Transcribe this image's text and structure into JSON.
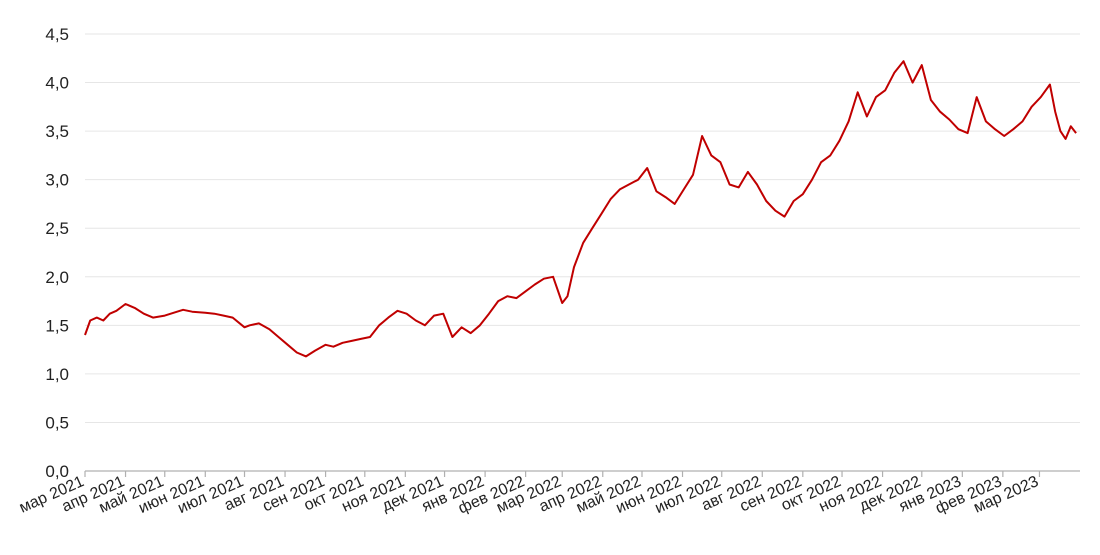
{
  "chart_data": {
    "type": "line",
    "title": "",
    "xlabel": "",
    "ylabel": "",
    "ylim": [
      0,
      4.5
    ],
    "yticks": [
      "0,0",
      "0,5",
      "1,0",
      "1,5",
      "2,0",
      "2,5",
      "3,0",
      "3,5",
      "4,0",
      "4,5"
    ],
    "xticks": [
      "мар 2021",
      "апр 2021",
      "май 2021",
      "июн 2021",
      "июл 2021",
      "авг 2021",
      "сен 2021",
      "окт 2021",
      "ноя 2021",
      "дек 2021",
      "янв 2022",
      "фев 2022",
      "мар 2022",
      "апр 2022",
      "май 2022",
      "июн 2022",
      "июл 2022",
      "авг 2022",
      "сен 2022",
      "окт 2022",
      "ноя 2022",
      "дек 2022",
      "янв 2023",
      "фев 2023",
      "мар 2023"
    ],
    "grid": true,
    "line_color": "#c00000",
    "series": [
      {
        "x": [
          "2021-03-01",
          "2021-03-05",
          "2021-03-10",
          "2021-03-15",
          "2021-03-20",
          "2021-03-25",
          "2021-04-01",
          "2021-04-08",
          "2021-04-15",
          "2021-04-22",
          "2021-05-01",
          "2021-05-08",
          "2021-05-15",
          "2021-05-22",
          "2021-06-01",
          "2021-06-08",
          "2021-06-15",
          "2021-06-22",
          "2021-07-01",
          "2021-07-05",
          "2021-07-12",
          "2021-07-20",
          "2021-07-27",
          "2021-08-03",
          "2021-08-10",
          "2021-08-17",
          "2021-08-24",
          "2021-09-01",
          "2021-09-07",
          "2021-09-14",
          "2021-09-21",
          "2021-09-28",
          "2021-10-05",
          "2021-10-12",
          "2021-10-19",
          "2021-10-26",
          "2021-11-02",
          "2021-11-09",
          "2021-11-16",
          "2021-11-23",
          "2021-11-30",
          "2021-12-07",
          "2021-12-14",
          "2021-12-21",
          "2021-12-28",
          "2022-01-04",
          "2022-01-11",
          "2022-01-18",
          "2022-01-25",
          "2022-02-01",
          "2022-02-08",
          "2022-02-15",
          "2022-02-22",
          "2022-03-01",
          "2022-03-05",
          "2022-03-10",
          "2022-03-17",
          "2022-03-24",
          "2022-03-31",
          "2022-04-07",
          "2022-04-14",
          "2022-04-21",
          "2022-04-28",
          "2022-05-05",
          "2022-05-12",
          "2022-05-19",
          "2022-05-26",
          "2022-06-02",
          "2022-06-09",
          "2022-06-16",
          "2022-06-23",
          "2022-06-30",
          "2022-07-07",
          "2022-07-14",
          "2022-07-21",
          "2022-07-28",
          "2022-08-04",
          "2022-08-11",
          "2022-08-18",
          "2022-08-25",
          "2022-09-01",
          "2022-09-08",
          "2022-09-15",
          "2022-09-22",
          "2022-09-29",
          "2022-10-06",
          "2022-10-13",
          "2022-10-20",
          "2022-10-27",
          "2022-11-03",
          "2022-11-10",
          "2022-11-17",
          "2022-11-24",
          "2022-12-01",
          "2022-12-08",
          "2022-12-15",
          "2022-12-22",
          "2022-12-29",
          "2023-01-05",
          "2023-01-12",
          "2023-01-19",
          "2023-01-26",
          "2023-02-02",
          "2023-02-09",
          "2023-02-16",
          "2023-02-23",
          "2023-03-02",
          "2023-03-09",
          "2023-03-13",
          "2023-03-17",
          "2023-03-21",
          "2023-03-25",
          "2023-03-29"
        ],
        "values": [
          1.4,
          1.55,
          1.58,
          1.55,
          1.62,
          1.65,
          1.72,
          1.68,
          1.62,
          1.58,
          1.6,
          1.63,
          1.66,
          1.64,
          1.63,
          1.62,
          1.6,
          1.58,
          1.48,
          1.5,
          1.52,
          1.46,
          1.38,
          1.3,
          1.22,
          1.18,
          1.24,
          1.3,
          1.28,
          1.32,
          1.34,
          1.36,
          1.38,
          1.5,
          1.58,
          1.65,
          1.62,
          1.55,
          1.5,
          1.6,
          1.62,
          1.38,
          1.48,
          1.42,
          1.5,
          1.62,
          1.75,
          1.8,
          1.78,
          1.85,
          1.92,
          1.98,
          2.0,
          1.73,
          1.8,
          2.1,
          2.35,
          2.5,
          2.65,
          2.8,
          2.9,
          2.95,
          3.0,
          3.12,
          2.88,
          2.82,
          2.75,
          2.9,
          3.05,
          3.45,
          3.25,
          3.18,
          2.95,
          2.92,
          3.08,
          2.95,
          2.78,
          2.68,
          2.62,
          2.78,
          2.85,
          3.0,
          3.18,
          3.25,
          3.4,
          3.6,
          3.9,
          3.65,
          3.85,
          3.92,
          4.1,
          4.22,
          4.0,
          4.18,
          3.82,
          3.7,
          3.62,
          3.52,
          3.48,
          3.85,
          3.6,
          3.52,
          3.45,
          3.52,
          3.6,
          3.75,
          3.85,
          3.98,
          3.7,
          3.5,
          3.42,
          3.55,
          3.48
        ]
      }
    ]
  }
}
